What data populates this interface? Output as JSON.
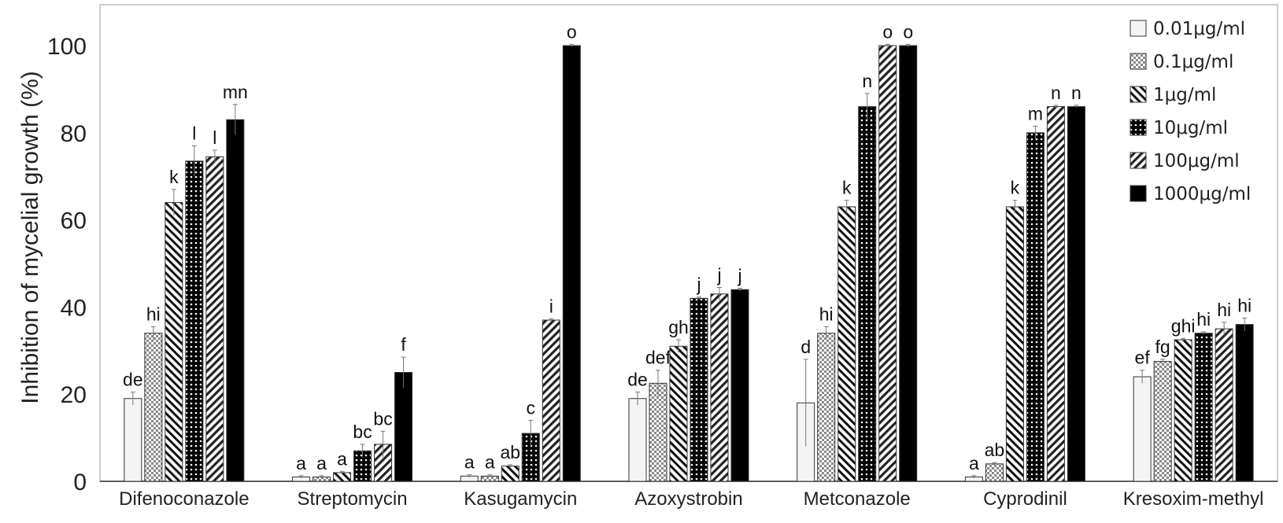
{
  "chart_data": {
    "type": "bar",
    "title": "",
    "xlabel": "",
    "ylabel": "Inhibition of mycelial growth (%)",
    "ylim": [
      0,
      110
    ],
    "yticks": [
      "0",
      "20",
      "40",
      "60",
      "80",
      "100"
    ],
    "grid": false,
    "legend_position": "top-right",
    "categories": [
      "Difenoconazole",
      "Streptomycin",
      "Kasugamycin",
      "Azoxystrobin",
      "Metconazole",
      "Cyprodinil",
      "Kresoxim-methyl"
    ],
    "series": [
      {
        "name": "0.01μg/ml",
        "pattern": "light",
        "values": [
          19,
          1,
          1.2,
          19,
          18,
          1,
          24
        ],
        "errors": [
          1.5,
          0.3,
          0.3,
          1.5,
          10,
          0.3,
          1.5
        ],
        "labels": [
          "de",
          "a",
          "a",
          "de",
          "d",
          "a",
          "ef"
        ]
      },
      {
        "name": "0.1μg/ml",
        "pattern": "checker",
        "values": [
          34,
          1,
          1.2,
          22.5,
          34,
          4,
          27.5
        ],
        "errors": [
          1.5,
          0.3,
          0.3,
          3,
          1.5,
          0.3,
          0.5
        ],
        "labels": [
          "hi",
          "a",
          "a",
          "def",
          "hi",
          "ab",
          "fg"
        ]
      },
      {
        "name": "1μg/ml",
        "pattern": "backslash",
        "values": [
          64,
          2,
          3.5,
          31,
          63,
          63,
          32.5
        ],
        "errors": [
          3,
          0.3,
          0.3,
          1.5,
          1.5,
          1.5,
          0.3
        ],
        "labels": [
          "k",
          "a",
          "ab",
          "gh",
          "k",
          "k",
          "ghi"
        ]
      },
      {
        "name": "10μg/ml",
        "pattern": "dots",
        "values": [
          73.5,
          7,
          11,
          42,
          86,
          80,
          34
        ],
        "errors": [
          3.5,
          1.5,
          3,
          0.3,
          3,
          1.5,
          0.3
        ],
        "labels": [
          "l",
          "bc",
          "c",
          "j",
          "n",
          "m",
          "hi"
        ]
      },
      {
        "name": "100μg/ml",
        "pattern": "slash",
        "values": [
          74.5,
          8.5,
          37,
          43,
          100,
          86,
          35
        ],
        "errors": [
          1.5,
          3,
          0.3,
          1.5,
          0.3,
          0.3,
          1.5
        ],
        "labels": [
          "l",
          "bc",
          "i",
          "j",
          "o",
          "n",
          "hi"
        ]
      },
      {
        "name": "1000μg/ml",
        "pattern": "black",
        "values": [
          83,
          25,
          100,
          44,
          100,
          86,
          36
        ],
        "errors": [
          3.5,
          3.5,
          0.3,
          0.3,
          0.3,
          0.3,
          1.5
        ],
        "labels": [
          "mn",
          "f",
          "o",
          "j",
          "o",
          "n",
          "hi"
        ]
      }
    ]
  }
}
